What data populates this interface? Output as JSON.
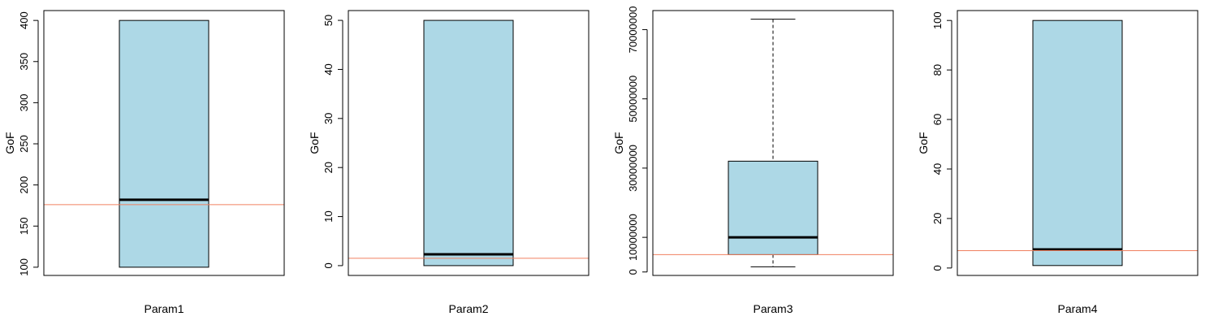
{
  "chart_data": [
    {
      "type": "box",
      "xlabel": "Param1",
      "ylabel": "GoF",
      "ylim": [
        90,
        412
      ],
      "yticks": [
        100,
        150,
        200,
        250,
        300,
        350,
        400
      ],
      "ytick_labels": [
        "100",
        "150",
        "200",
        "250",
        "300",
        "350",
        "400"
      ],
      "box": {
        "whisker_low": 100,
        "q1": 100,
        "median": 182,
        "q3": 400,
        "whisker_high": 400
      },
      "reference_line": 176,
      "box_color": "#add8e6",
      "reference_color": "#f08060"
    },
    {
      "type": "box",
      "xlabel": "Param2",
      "ylabel": "GoF",
      "ylim": [
        -2,
        52
      ],
      "yticks": [
        0,
        10,
        20,
        30,
        40,
        50
      ],
      "ytick_labels": [
        "0",
        "10",
        "20",
        "30",
        "40",
        "50"
      ],
      "box": {
        "whisker_low": 0,
        "q1": 0,
        "median": 2.3,
        "q3": 50,
        "whisker_high": 50
      },
      "reference_line": 1.5,
      "box_color": "#add8e6",
      "reference_color": "#f08060"
    },
    {
      "type": "box",
      "xlabel": "Param3",
      "ylabel": "GoF",
      "ylim": [
        -1000000,
        75500000
      ],
      "yticks": [
        0,
        10000000,
        30000000,
        50000000,
        70000000
      ],
      "ytick_labels": [
        "0",
        "10000000",
        "30000000",
        "50000000",
        "70000000"
      ],
      "box": {
        "whisker_low": 1500000,
        "q1": 5000000,
        "median": 10000000,
        "q3": 32000000,
        "whisker_high": 73000000
      },
      "reference_line": 5000000,
      "box_color": "#add8e6",
      "reference_color": "#f08060"
    },
    {
      "type": "box",
      "xlabel": "Param4",
      "ylabel": "GoF",
      "ylim": [
        -3,
        104
      ],
      "yticks": [
        0,
        20,
        40,
        60,
        80,
        100
      ],
      "ytick_labels": [
        "0",
        "20",
        "40",
        "60",
        "80",
        "100"
      ],
      "box": {
        "whisker_low": 1,
        "q1": 1,
        "median": 7.5,
        "q3": 100,
        "whisker_high": 100
      },
      "reference_line": 7,
      "box_color": "#add8e6",
      "reference_color": "#f08060"
    }
  ]
}
